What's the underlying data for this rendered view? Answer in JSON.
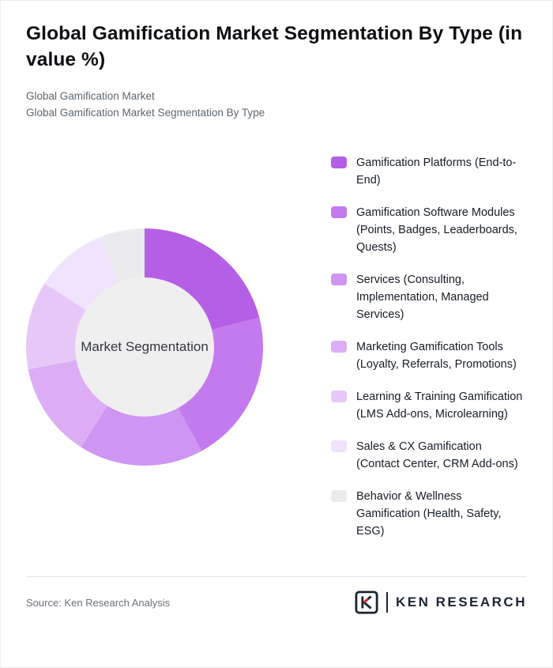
{
  "header": {
    "title": "Global Gamification Market Segmentation By Type (in value %)",
    "subtitles": [
      "Global Gamification Market",
      "Global Gamification Market Segmentation By Type"
    ]
  },
  "chart_data": {
    "type": "pie",
    "variant": "donut",
    "title": "Global Gamification Market Segmentation By Type (in value %)",
    "center_label": "Market Segmentation",
    "start_angle_deg": -90,
    "direction": "clockwise",
    "legend_position": "right",
    "donut_hole_color": "#f0eff0",
    "segments": [
      {
        "label": "Gamification Platforms (End-to-End)",
        "value": 21,
        "color": "#b45fe6"
      },
      {
        "label": "Gamification Software Modules (Points, Badges, Leaderboards, Quests)",
        "value": 21,
        "color": "#c37aef"
      },
      {
        "label": "Services (Consulting, Implementation, Managed Services)",
        "value": 17,
        "color": "#cf95f2"
      },
      {
        "label": "Marketing Gamification Tools (Loyalty, Referrals, Promotions)",
        "value": 13,
        "color": "#dcadf5"
      },
      {
        "label": "Learning & Training Gamification (LMS Add-ons, Microlearning)",
        "value": 12,
        "color": "#e7c7f8"
      },
      {
        "label": "Sales & CX Gamification (Contact Center, CRM Add-ons)",
        "value": 10,
        "color": "#f0e3fc"
      },
      {
        "label": "Behavior & Wellness Gamification (Health, Safety, ESG)",
        "value": 6,
        "color": "#ebebee"
      }
    ]
  },
  "footer": {
    "source": "Source: Ken Research Analysis",
    "logo": {
      "mark": "K",
      "text": "KEN RESEARCH",
      "accent_color": "#e01f2e",
      "dark_color": "#1a2433"
    }
  }
}
